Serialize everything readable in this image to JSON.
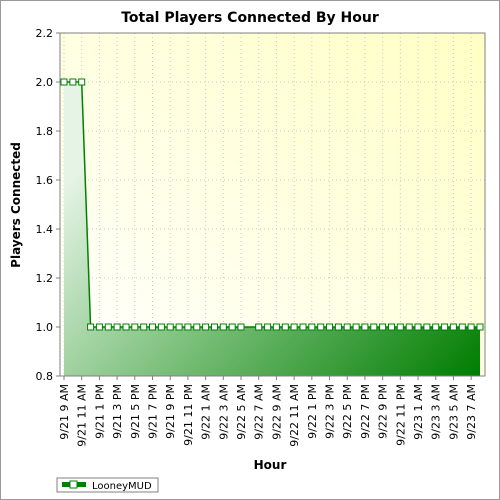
{
  "chart_data": {
    "type": "area",
    "title": "Total Players Connected By Hour",
    "xlabel": "Hour",
    "ylabel": "Players Connected",
    "ylim": [
      0.8,
      2.2
    ],
    "yticks": [
      "0.8",
      "1.0",
      "1.2",
      "1.4",
      "1.6",
      "1.8",
      "2.0",
      "2.2"
    ],
    "grid": true,
    "legend_position": "bottom-left",
    "x_tick_labels": [
      "9/21 9 AM",
      "9/21 11 AM",
      "9/21 1 PM",
      "9/21 3 PM",
      "9/21 5 PM",
      "9/21 7 PM",
      "9/21 9 PM",
      "9/21 11 PM",
      "9/22 1 AM",
      "9/22 3 AM",
      "9/22 5 AM",
      "9/22 7 AM",
      "9/22 9 AM",
      "9/22 11 AM",
      "9/22 1 PM",
      "9/22 3 PM",
      "9/22 5 PM",
      "9/22 7 PM",
      "9/22 9 PM",
      "9/22 11 PM",
      "9/23 1 AM",
      "9/23 3 AM",
      "9/23 5 AM",
      "9/23 7 AM"
    ],
    "x_start": "9/21 9 AM",
    "x_end": "9/23 8 AM",
    "series": [
      {
        "name": "LooneyMUD",
        "color": "#008000",
        "points": [
          {
            "x": "9/21 9 AM",
            "y": 2.0
          },
          {
            "x": "9/21 10 AM",
            "y": 2.0
          },
          {
            "x": "9/21 11 AM",
            "y": 2.0
          },
          {
            "x": "9/21 12 PM",
            "y": 1.0
          },
          {
            "x": "9/21 1 PM",
            "y": 1.0
          },
          {
            "x": "9/21 2 PM",
            "y": 1.0
          },
          {
            "x": "9/21 3 PM",
            "y": 1.0
          },
          {
            "x": "9/21 4 PM",
            "y": 1.0
          },
          {
            "x": "9/21 5 PM",
            "y": 1.0
          },
          {
            "x": "9/21 6 PM",
            "y": 1.0
          },
          {
            "x": "9/21 7 PM",
            "y": 1.0
          },
          {
            "x": "9/21 8 PM",
            "y": 1.0
          },
          {
            "x": "9/21 9 PM",
            "y": 1.0
          },
          {
            "x": "9/21 10 PM",
            "y": 1.0
          },
          {
            "x": "9/21 11 PM",
            "y": 1.0
          },
          {
            "x": "9/22 12 AM",
            "y": 1.0
          },
          {
            "x": "9/22 1 AM",
            "y": 1.0
          },
          {
            "x": "9/22 2 AM",
            "y": 1.0
          },
          {
            "x": "9/22 3 AM",
            "y": 1.0
          },
          {
            "x": "9/22 4 AM",
            "y": 1.0
          },
          {
            "x": "9/22 5 AM",
            "y": 1.0
          },
          {
            "x": "9/22 7 AM",
            "y": 1.0
          },
          {
            "x": "9/22 8 AM",
            "y": 1.0
          },
          {
            "x": "9/22 9 AM",
            "y": 1.0
          },
          {
            "x": "9/22 10 AM",
            "y": 1.0
          },
          {
            "x": "9/22 11 AM",
            "y": 1.0
          },
          {
            "x": "9/22 12 PM",
            "y": 1.0
          },
          {
            "x": "9/22 1 PM",
            "y": 1.0
          },
          {
            "x": "9/22 2 PM",
            "y": 1.0
          },
          {
            "x": "9/22 3 PM",
            "y": 1.0
          },
          {
            "x": "9/22 4 PM",
            "y": 1.0
          },
          {
            "x": "9/22 5 PM",
            "y": 1.0
          },
          {
            "x": "9/22 6 PM",
            "y": 1.0
          },
          {
            "x": "9/22 7 PM",
            "y": 1.0
          },
          {
            "x": "9/22 8 PM",
            "y": 1.0
          },
          {
            "x": "9/22 9 PM",
            "y": 1.0
          },
          {
            "x": "9/22 10 PM",
            "y": 1.0
          },
          {
            "x": "9/22 11 PM",
            "y": 1.0
          },
          {
            "x": "9/23 12 AM",
            "y": 1.0
          },
          {
            "x": "9/23 1 AM",
            "y": 1.0
          },
          {
            "x": "9/23 2 AM",
            "y": 1.0
          },
          {
            "x": "9/23 3 AM",
            "y": 1.0
          },
          {
            "x": "9/23 4 AM",
            "y": 1.0
          },
          {
            "x": "9/23 5 AM",
            "y": 1.0
          },
          {
            "x": "9/23 6 AM",
            "y": 1.0
          },
          {
            "x": "9/23 7 AM",
            "y": 1.0
          },
          {
            "x": "9/23 8 AM",
            "y": 1.0
          }
        ]
      }
    ]
  }
}
